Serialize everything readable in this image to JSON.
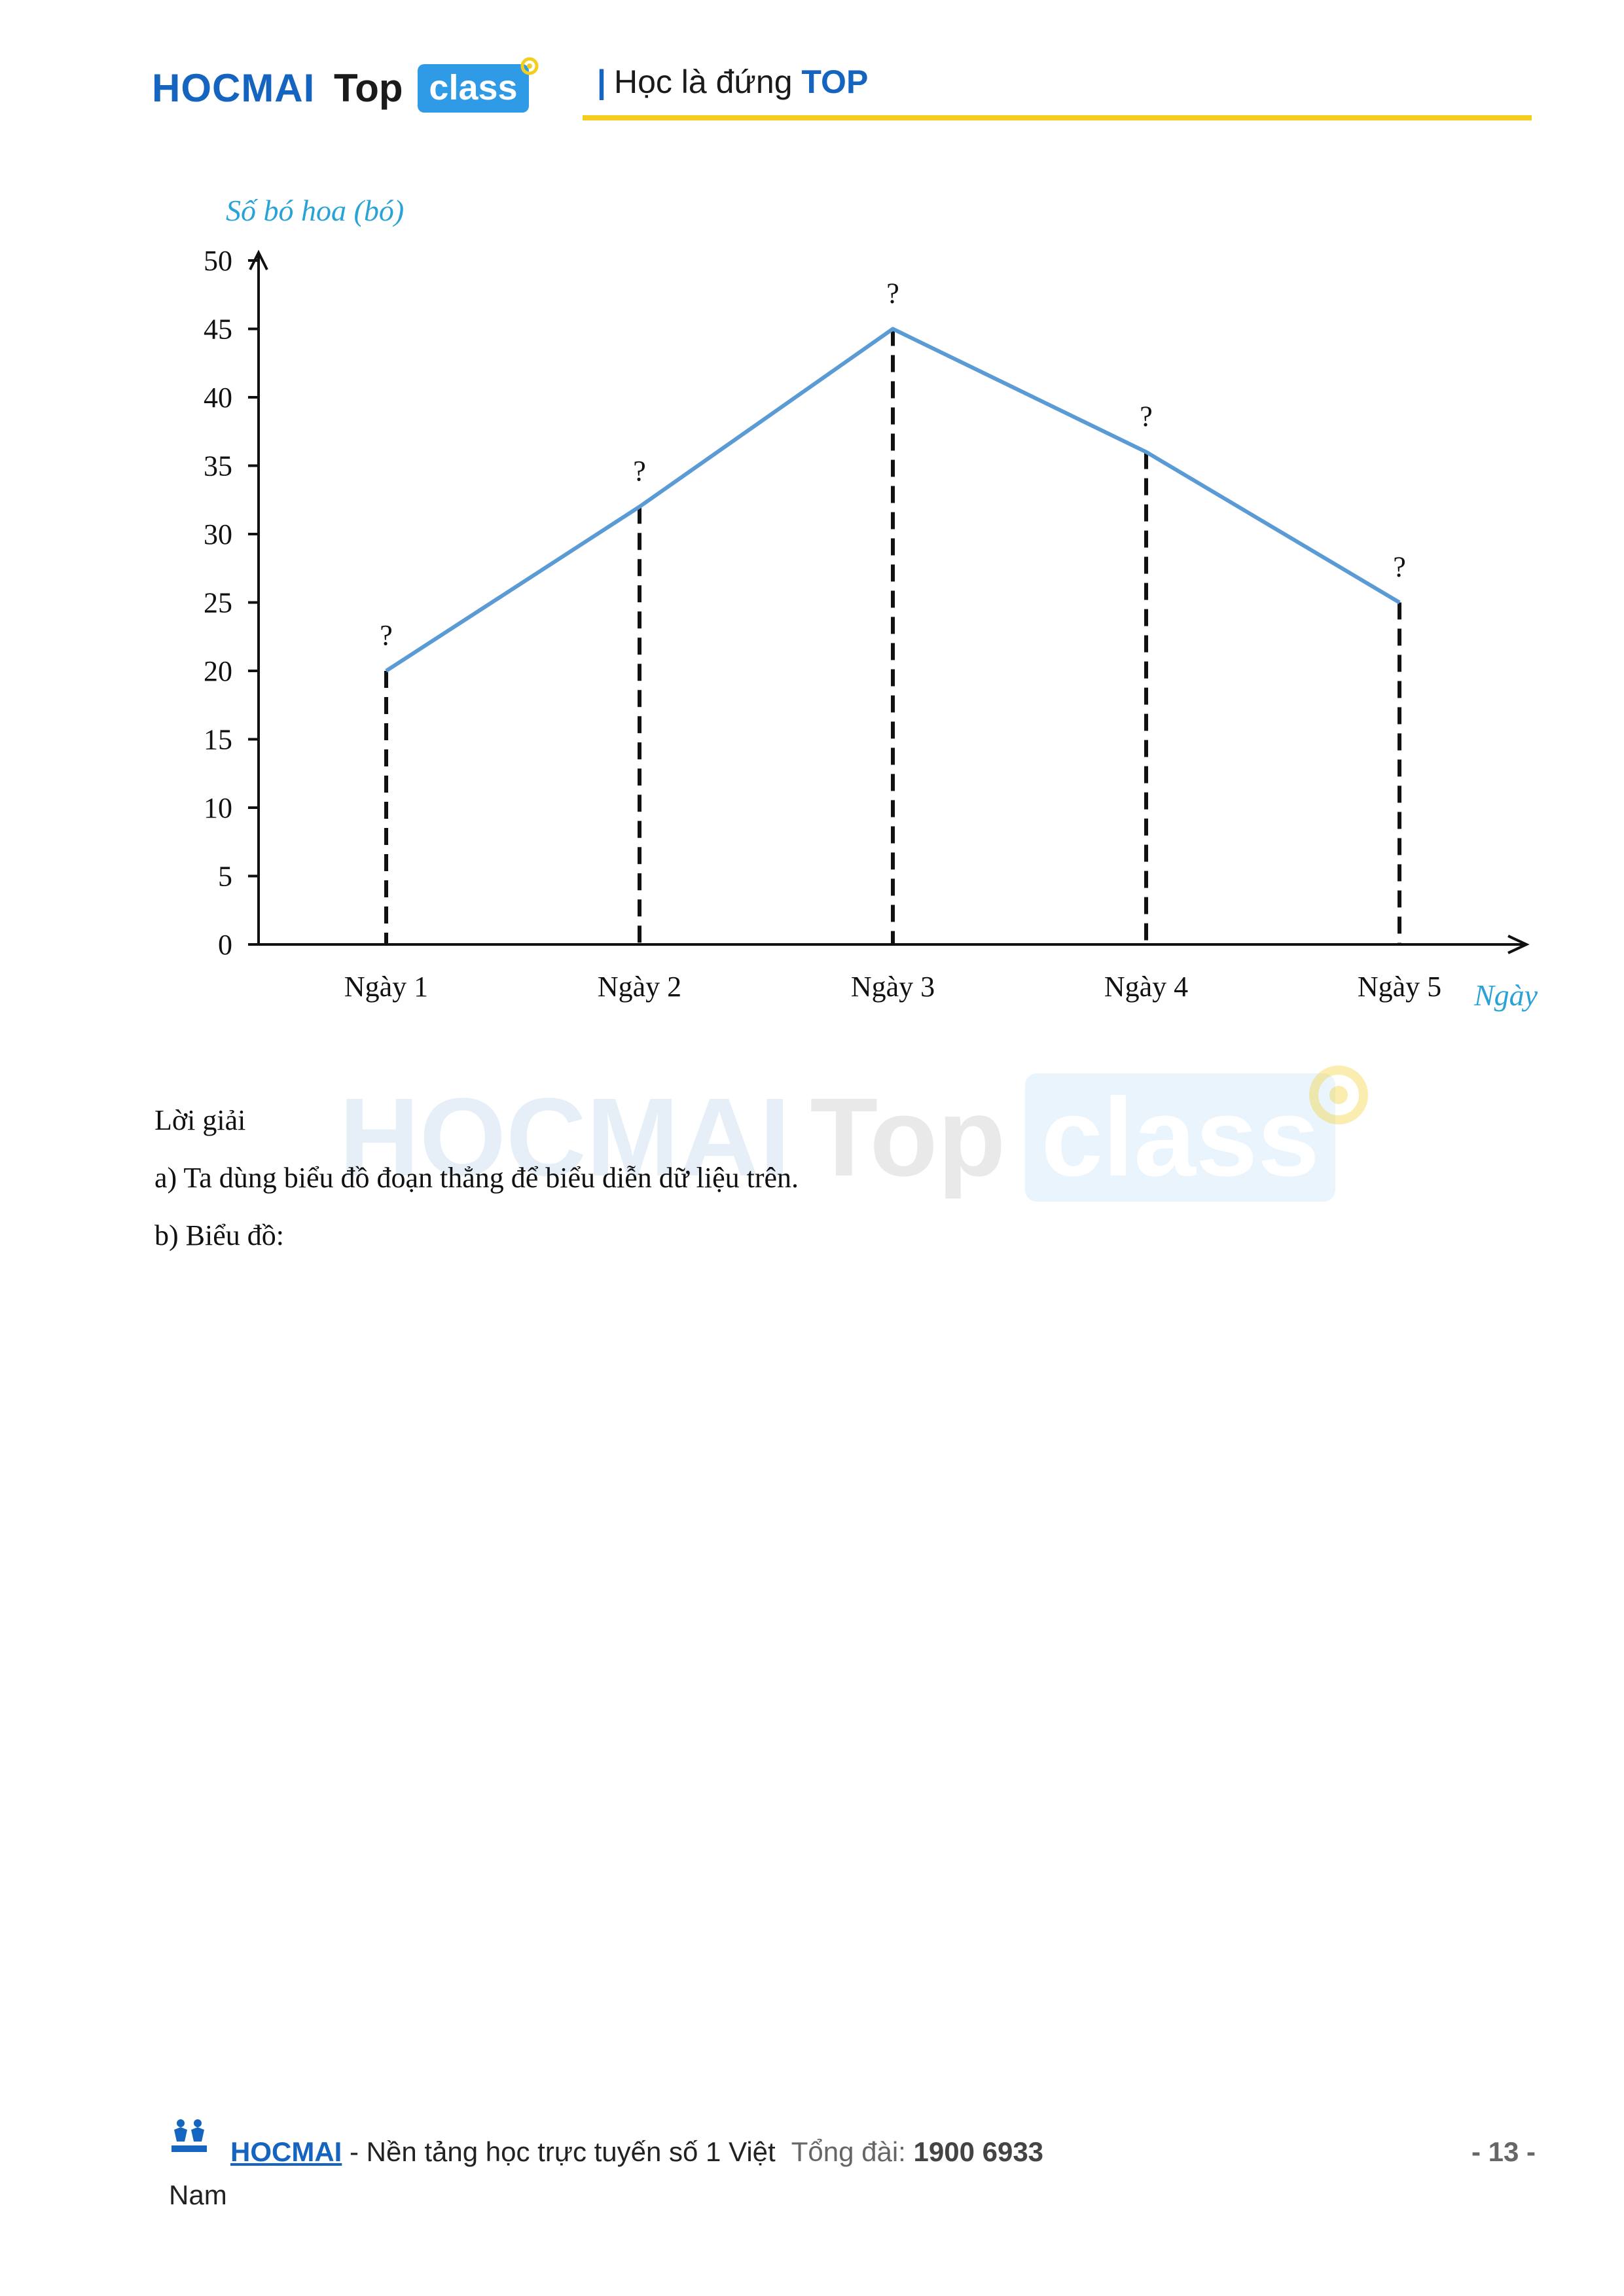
{
  "header": {
    "logo_hocmai": "HOCMAI",
    "logo_top": "Top",
    "logo_class": "class",
    "slogan_bar": "|",
    "slogan_text": "Học là đứng",
    "slogan_top": "TOP"
  },
  "watermark": {
    "hocmai": "HOCMAI",
    "top": "Top",
    "class": "class"
  },
  "chart_data": {
    "type": "line",
    "categories": [
      "Ngày 1",
      "Ngày 2",
      "Ngày 3",
      "Ngày 4",
      "Ngày 5"
    ],
    "values": [
      20,
      32,
      45,
      36,
      25
    ],
    "point_labels": [
      "?",
      "?",
      "?",
      "?",
      "?"
    ],
    "ylabel": "Số bó hoa (bó)",
    "xlabel": "Ngày",
    "ylim": [
      0,
      50
    ],
    "yticks": [
      0,
      5,
      10,
      15,
      20,
      25,
      30,
      35,
      40,
      45,
      50
    ],
    "grid": false,
    "line_color": "#5b9bd5",
    "drop_lines": "dashed"
  },
  "solution": {
    "heading": "Lời giải",
    "part_a": "a) Ta dùng biểu đồ đoạn thẳng để biểu diễn dữ liệu trên.",
    "part_b": "b) Biểu đồ:"
  },
  "footer": {
    "brand": "HOCMAI",
    "tagline": " - Nền tảng học trực tuyến số 1 Việt",
    "hotline_label": "Tổng đài:",
    "hotline_number": "1900 6933",
    "tagline_end": "Nam",
    "page": "- 13 -"
  },
  "colors": {
    "brand_blue": "#1565c0",
    "accent_yellow": "#f5cd1c",
    "class_blue": "#2f9be6",
    "axis_title_cyan": "#29a3d6"
  }
}
